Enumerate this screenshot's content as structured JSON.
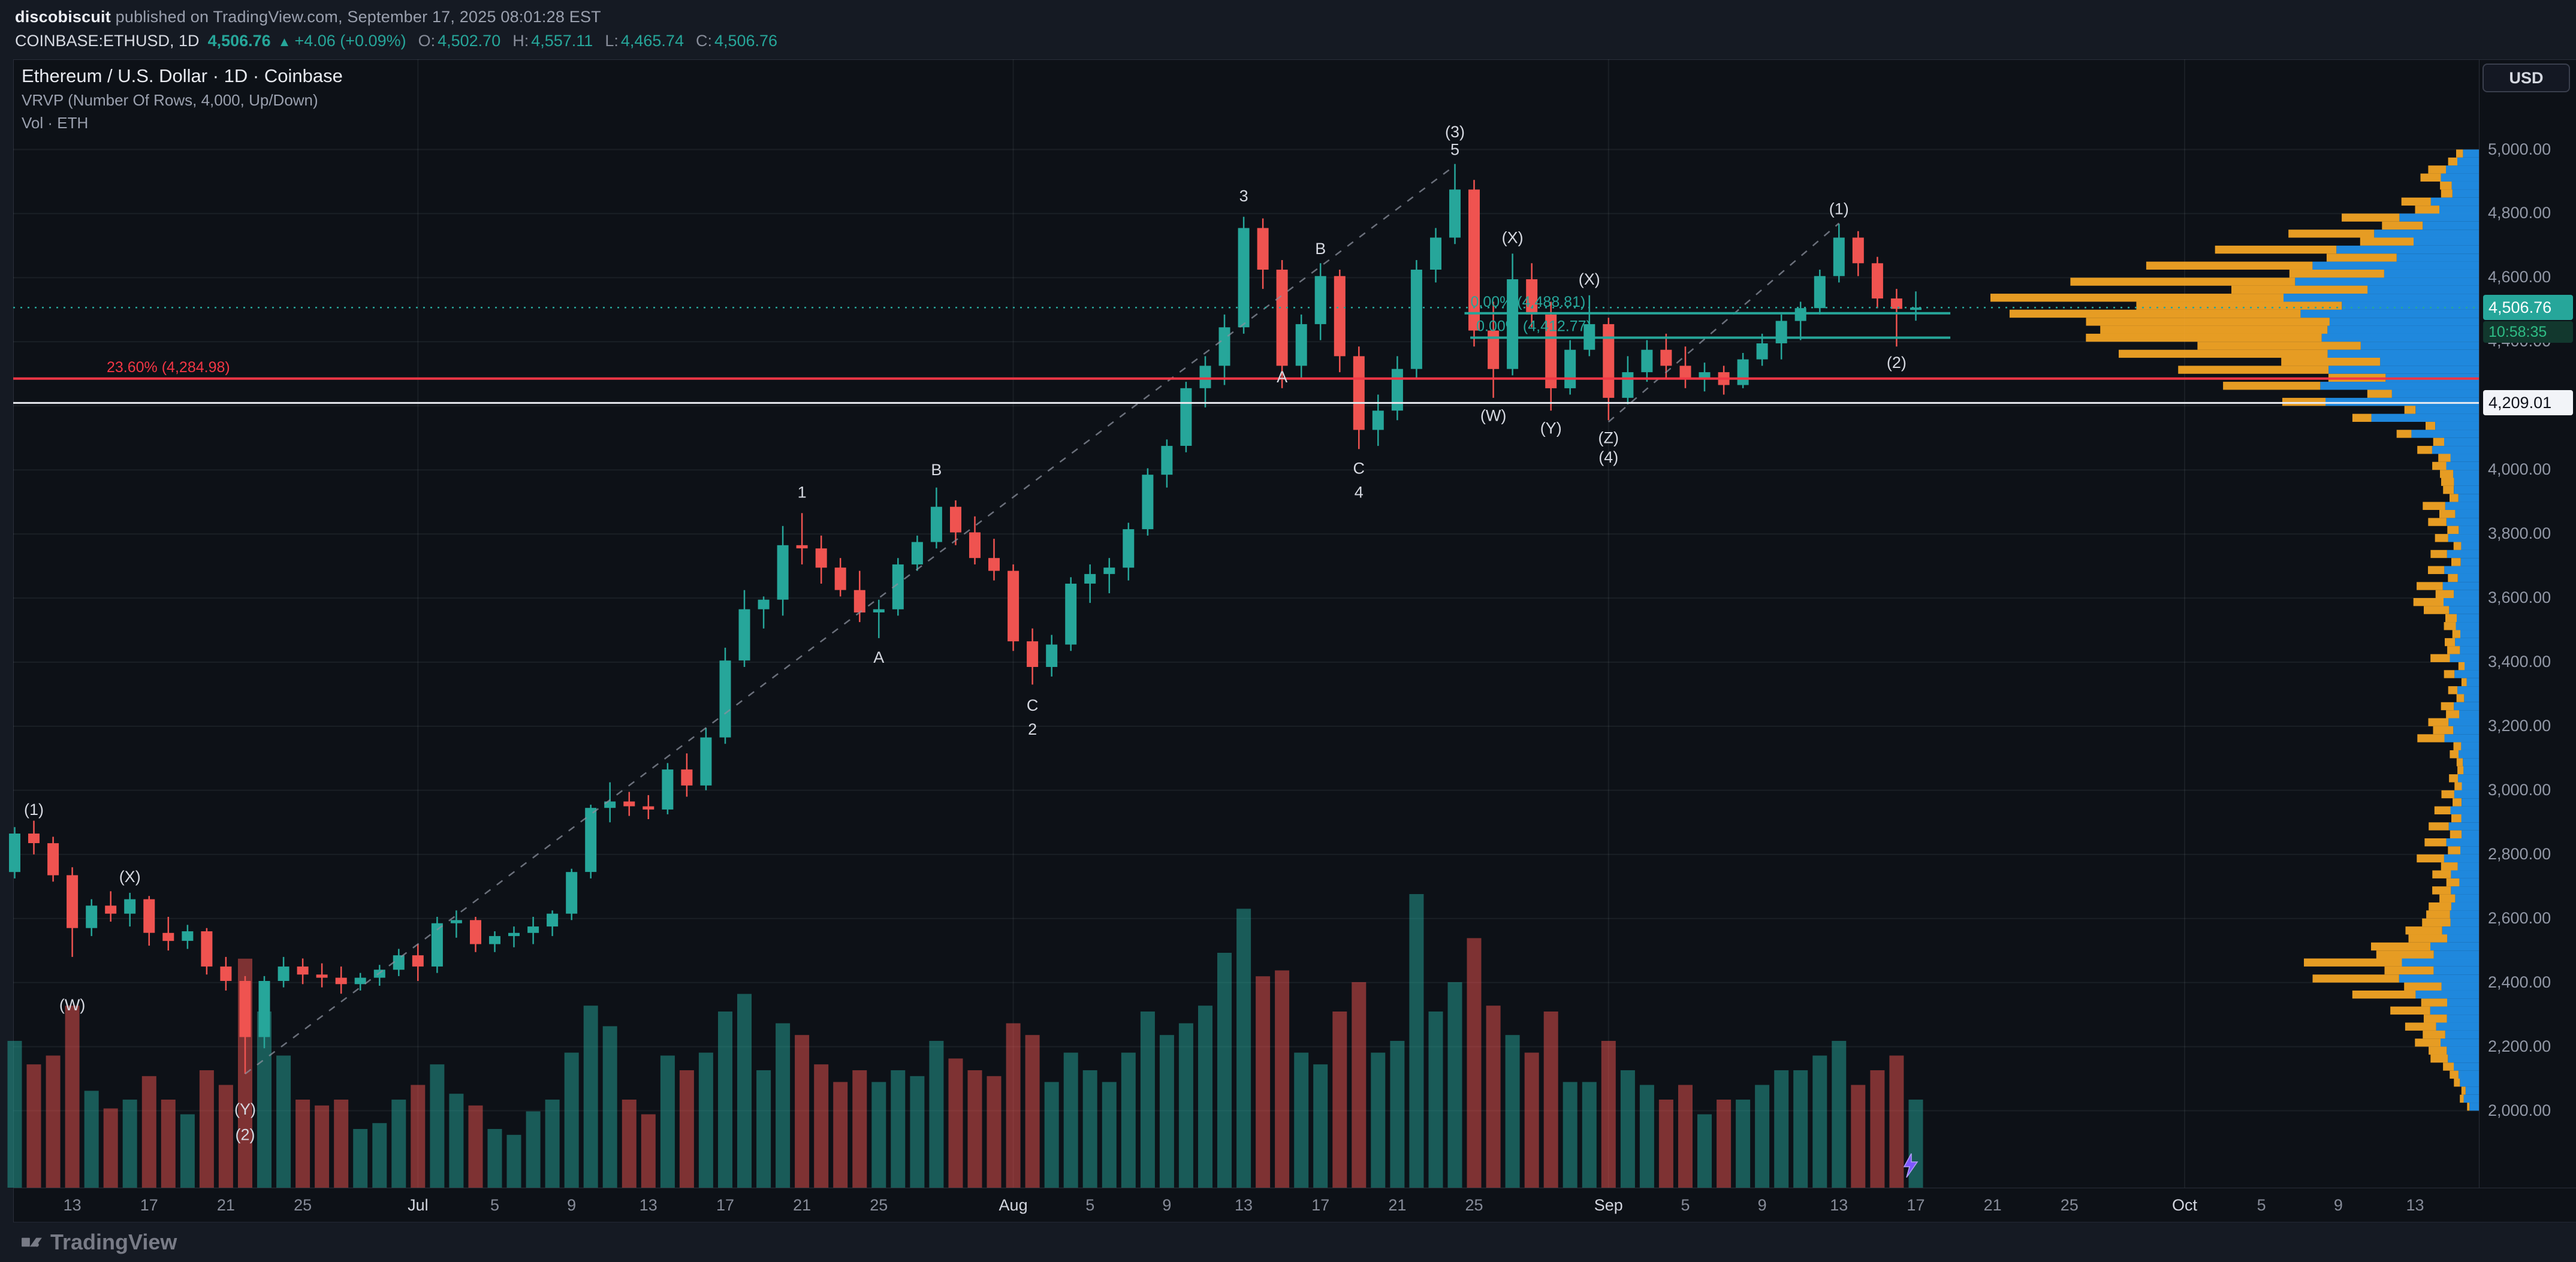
{
  "header": {
    "user": "discobiscuit",
    "published": " published on TradingView.com, September 17, 2025 08:01:28 EST",
    "symbol_line": {
      "symbol": "COINBASE:ETHUSD, 1D",
      "price": "4,506.76",
      "arrow": "▲",
      "change": "+4.06 (+0.09%)",
      "o_label": "O:",
      "o": "4,502.70",
      "h_label": "H:",
      "h": "4,557.11",
      "l_label": "L:",
      "l": "4,465.74",
      "c_label": "C:",
      "c": "4,506.76"
    }
  },
  "legend": {
    "title": "Ethereum / U.S. Dollar · 1D · Coinbase",
    "indicator1": "VRVP (Number Of Rows, 4,000, Up/Down)",
    "indicator2": "Vol · ETH"
  },
  "axis_button": "USD",
  "badges": {
    "last_price": "4,506.76",
    "countdown": "10:58:35",
    "alert_price": "4,209.01"
  },
  "footer": {
    "brand": "TradingView"
  },
  "chart_data": {
    "type": "candlestick",
    "title": "Ethereum / U.S. Dollar · 1D · Coinbase",
    "symbol": "COINBASE:ETHUSD",
    "interval": "1D",
    "visible_price_range": [
      1760,
      5280
    ],
    "badge_prices": {
      "last": 4506.76,
      "alert": 4209.01
    },
    "price_axis": [
      {
        "t": "5,000.00",
        "p": 5000
      },
      {
        "t": "4,800.00",
        "p": 4800
      },
      {
        "t": "4,600.00",
        "p": 4600
      },
      {
        "t": "4,400.00",
        "p": 4400
      },
      {
        "t": "4,200.00",
        "p": 4200
      },
      {
        "t": "4,000.00",
        "p": 4000
      },
      {
        "t": "3,800.00",
        "p": 3800
      },
      {
        "t": "3,600.00",
        "p": 3600
      },
      {
        "t": "3,400.00",
        "p": 3400
      },
      {
        "t": "3,200.00",
        "p": 3200
      },
      {
        "t": "3,000.00",
        "p": 3000
      },
      {
        "t": "2,800.00",
        "p": 2800
      },
      {
        "t": "2,600.00",
        "p": 2600
      },
      {
        "t": "2,400.00",
        "p": 2400
      },
      {
        "t": "2,200.00",
        "p": 2200
      },
      {
        "t": "2,000.00",
        "p": 2000
      }
    ],
    "time_axis": [
      {
        "t": "13",
        "d": 3
      },
      {
        "t": "17",
        "d": 7
      },
      {
        "t": "21",
        "d": 11
      },
      {
        "t": "25",
        "d": 15
      },
      {
        "t": "Jul",
        "d": 21,
        "m": true
      },
      {
        "t": "5",
        "d": 25
      },
      {
        "t": "9",
        "d": 29
      },
      {
        "t": "13",
        "d": 33
      },
      {
        "t": "17",
        "d": 37
      },
      {
        "t": "21",
        "d": 41
      },
      {
        "t": "25",
        "d": 45
      },
      {
        "t": "Aug",
        "d": 52,
        "m": true
      },
      {
        "t": "5",
        "d": 56
      },
      {
        "t": "9",
        "d": 60
      },
      {
        "t": "13",
        "d": 64
      },
      {
        "t": "17",
        "d": 68
      },
      {
        "t": "21",
        "d": 72
      },
      {
        "t": "25",
        "d": 76
      },
      {
        "t": "Sep",
        "d": 83,
        "m": true
      },
      {
        "t": "5",
        "d": 87
      },
      {
        "t": "9",
        "d": 91
      },
      {
        "t": "13",
        "d": 95
      },
      {
        "t": "17",
        "d": 99
      },
      {
        "t": "21",
        "d": 103
      },
      {
        "t": "25",
        "d": 107
      },
      {
        "t": "Oct",
        "d": 113,
        "m": true
      },
      {
        "t": "5",
        "d": 117
      },
      {
        "t": "9",
        "d": 121
      },
      {
        "t": "13",
        "d": 125
      }
    ],
    "month_grid": [
      21,
      52,
      83,
      113
    ],
    "lines": [
      {
        "name": "fib-line-23-60",
        "label": "23.60% (4,284.98)",
        "label_x": 178,
        "price": 4284.98,
        "color": "#f23645",
        "style": "solid",
        "width": 4
      },
      {
        "name": "horizontal-line-4209",
        "label": "",
        "price": 4209.01,
        "color": "#e8eaf0",
        "style": "solid",
        "width": 3
      },
      {
        "name": "last-price-line",
        "label": "",
        "price": 4506.76,
        "color": "#26a69a",
        "style": "dotted",
        "width": 2.5
      },
      {
        "name": "fib-line-0-upper",
        "label": "0.00% (4,488.81)",
        "price": 4488.81,
        "color": "#26a69a",
        "style": "solid",
        "width": 4,
        "from_i": 75.5,
        "to_i": 100.8
      },
      {
        "name": "fib-line-0-lower",
        "label": "0.00% (4,412.77)",
        "price": 4412.77,
        "color": "#26a69a",
        "style": "solid",
        "width": 4,
        "from_i": 75.8,
        "to_i": 100.8
      }
    ],
    "trendlines": [
      {
        "i1": 12,
        "p1": 2115,
        "i2": 75,
        "p2": 4950
      },
      {
        "i1": 83,
        "p1": 4150,
        "i2": 95,
        "p2": 4770
      }
    ],
    "wave_labels": [
      {
        "t": "(1)",
        "i": 1,
        "p": 2940
      },
      {
        "t": "(X)",
        "i": 6,
        "p": 2730
      },
      {
        "t": "(W)",
        "i": 3,
        "p": 2330
      },
      {
        "t": "(Y)",
        "i": 12,
        "p": 2005
      },
      {
        "t": "(2)",
        "i": 12,
        "p": 1925
      },
      {
        "t": "1",
        "i": 41,
        "p": 3930
      },
      {
        "t": "A",
        "i": 45,
        "p": 3415
      },
      {
        "t": "B",
        "i": 48,
        "p": 4000
      },
      {
        "t": "C",
        "i": 53,
        "p": 3265
      },
      {
        "t": "2",
        "i": 53,
        "p": 3190
      },
      {
        "t": "3",
        "i": 64,
        "p": 4855
      },
      {
        "t": "A",
        "i": 66,
        "p": 4290
      },
      {
        "t": "B",
        "i": 68,
        "p": 4690
      },
      {
        "t": "C",
        "i": 70,
        "p": 4005
      },
      {
        "t": "4",
        "i": 70,
        "p": 3930
      },
      {
        "t": "5",
        "i": 75,
        "p": 5000
      },
      {
        "t": "(3)",
        "i": 75,
        "p": 5055
      },
      {
        "t": "(X)",
        "i": 78,
        "p": 4725
      },
      {
        "t": "(W)",
        "i": 77,
        "p": 4170
      },
      {
        "t": "(X)",
        "i": 82,
        "p": 4595
      },
      {
        "t": "(Y)",
        "i": 80,
        "p": 4130
      },
      {
        "t": "(Z)",
        "i": 83,
        "p": 4100
      },
      {
        "t": "(4)",
        "i": 83,
        "p": 4040
      },
      {
        "t": "(1)",
        "i": 95,
        "p": 4815
      },
      {
        "t": "(2)",
        "i": 98,
        "p": 4335
      }
    ],
    "candles": [
      [
        2745,
        2885,
        2725,
        2865,
        0.5
      ],
      [
        2865,
        2905,
        2800,
        2835,
        0.42
      ],
      [
        2835,
        2855,
        2715,
        2735,
        0.45
      ],
      [
        2735,
        2760,
        2480,
        2570,
        0.62
      ],
      [
        2570,
        2660,
        2545,
        2640,
        0.33
      ],
      [
        2640,
        2685,
        2590,
        2615,
        0.27
      ],
      [
        2615,
        2680,
        2575,
        2660,
        0.3
      ],
      [
        2660,
        2670,
        2515,
        2555,
        0.38
      ],
      [
        2555,
        2605,
        2500,
        2530,
        0.3
      ],
      [
        2530,
        2580,
        2505,
        2560,
        0.25
      ],
      [
        2560,
        2570,
        2425,
        2450,
        0.4
      ],
      [
        2450,
        2480,
        2375,
        2405,
        0.35
      ],
      [
        2405,
        2420,
        2115,
        2230,
        0.78
      ],
      [
        2230,
        2420,
        2195,
        2405,
        0.6
      ],
      [
        2405,
        2480,
        2385,
        2450,
        0.45
      ],
      [
        2450,
        2475,
        2395,
        2425,
        0.3
      ],
      [
        2425,
        2460,
        2385,
        2415,
        0.28
      ],
      [
        2415,
        2450,
        2365,
        2395,
        0.3
      ],
      [
        2395,
        2430,
        2375,
        2415,
        0.2
      ],
      [
        2415,
        2455,
        2390,
        2440,
        0.22
      ],
      [
        2440,
        2505,
        2420,
        2485,
        0.3
      ],
      [
        2485,
        2520,
        2405,
        2450,
        0.35
      ],
      [
        2450,
        2605,
        2430,
        2585,
        0.42
      ],
      [
        2585,
        2625,
        2540,
        2595,
        0.32
      ],
      [
        2595,
        2605,
        2495,
        2520,
        0.28
      ],
      [
        2520,
        2560,
        2495,
        2545,
        0.2
      ],
      [
        2545,
        2575,
        2510,
        2555,
        0.18
      ],
      [
        2555,
        2605,
        2520,
        2575,
        0.26
      ],
      [
        2575,
        2625,
        2545,
        2615,
        0.3
      ],
      [
        2615,
        2755,
        2595,
        2745,
        0.46
      ],
      [
        2745,
        2955,
        2725,
        2945,
        0.62
      ],
      [
        2945,
        3025,
        2900,
        2965,
        0.55
      ],
      [
        2965,
        2995,
        2920,
        2950,
        0.3
      ],
      [
        2950,
        2985,
        2910,
        2940,
        0.25
      ],
      [
        2940,
        3085,
        2925,
        3065,
        0.45
      ],
      [
        3065,
        3115,
        2980,
        3015,
        0.4
      ],
      [
        3015,
        3195,
        3000,
        3165,
        0.46
      ],
      [
        3165,
        3445,
        3145,
        3405,
        0.6
      ],
      [
        3405,
        3625,
        3385,
        3565,
        0.66
      ],
      [
        3565,
        3605,
        3505,
        3595,
        0.4
      ],
      [
        3595,
        3825,
        3545,
        3765,
        0.56
      ],
      [
        3765,
        3865,
        3705,
        3755,
        0.52
      ],
      [
        3755,
        3795,
        3645,
        3695,
        0.42
      ],
      [
        3695,
        3725,
        3605,
        3625,
        0.36
      ],
      [
        3625,
        3685,
        3525,
        3555,
        0.4
      ],
      [
        3555,
        3595,
        3475,
        3565,
        0.36
      ],
      [
        3565,
        3725,
        3545,
        3705,
        0.4
      ],
      [
        3705,
        3795,
        3685,
        3775,
        0.38
      ],
      [
        3775,
        3945,
        3755,
        3885,
        0.5
      ],
      [
        3885,
        3905,
        3765,
        3805,
        0.44
      ],
      [
        3805,
        3855,
        3705,
        3725,
        0.4
      ],
      [
        3725,
        3785,
        3655,
        3685,
        0.38
      ],
      [
        3685,
        3705,
        3435,
        3465,
        0.56
      ],
      [
        3465,
        3505,
        3330,
        3385,
        0.52
      ],
      [
        3385,
        3485,
        3355,
        3455,
        0.36
      ],
      [
        3455,
        3665,
        3435,
        3645,
        0.46
      ],
      [
        3645,
        3705,
        3585,
        3675,
        0.4
      ],
      [
        3675,
        3725,
        3615,
        3695,
        0.36
      ],
      [
        3695,
        3835,
        3655,
        3815,
        0.46
      ],
      [
        3815,
        4005,
        3795,
        3985,
        0.6
      ],
      [
        3985,
        4095,
        3945,
        4075,
        0.52
      ],
      [
        4075,
        4275,
        4055,
        4255,
        0.56
      ],
      [
        4255,
        4355,
        4195,
        4325,
        0.62
      ],
      [
        4325,
        4485,
        4265,
        4445,
        0.8
      ],
      [
        4445,
        4790,
        4425,
        4755,
        0.95
      ],
      [
        4755,
        4785,
        4565,
        4625,
        0.72
      ],
      [
        4625,
        4655,
        4255,
        4325,
        0.74
      ],
      [
        4325,
        4485,
        4285,
        4455,
        0.46
      ],
      [
        4455,
        4645,
        4405,
        4605,
        0.42
      ],
      [
        4605,
        4625,
        4305,
        4355,
        0.6
      ],
      [
        4355,
        4385,
        4065,
        4125,
        0.7
      ],
      [
        4125,
        4235,
        4075,
        4185,
        0.46
      ],
      [
        4185,
        4355,
        4155,
        4315,
        0.5
      ],
      [
        4315,
        4655,
        4285,
        4625,
        1.0
      ],
      [
        4625,
        4755,
        4585,
        4725,
        0.6
      ],
      [
        4725,
        4955,
        4705,
        4875,
        0.7
      ],
      [
        4875,
        4905,
        4385,
        4435,
        0.85
      ],
      [
        4435,
        4525,
        4225,
        4315,
        0.62
      ],
      [
        4315,
        4675,
        4295,
        4595,
        0.52
      ],
      [
        4595,
        4645,
        4445,
        4485,
        0.46
      ],
      [
        4485,
        4525,
        4185,
        4255,
        0.6
      ],
      [
        4255,
        4405,
        4235,
        4375,
        0.36
      ],
      [
        4375,
        4545,
        4355,
        4455,
        0.36
      ],
      [
        4455,
        4475,
        4155,
        4225,
        0.5
      ],
      [
        4225,
        4355,
        4205,
        4305,
        0.4
      ],
      [
        4305,
        4405,
        4275,
        4375,
        0.35
      ],
      [
        4375,
        4425,
        4285,
        4325,
        0.3
      ],
      [
        4325,
        4385,
        4255,
        4285,
        0.35
      ],
      [
        4285,
        4335,
        4245,
        4305,
        0.25
      ],
      [
        4305,
        4325,
        4235,
        4265,
        0.3
      ],
      [
        4265,
        4365,
        4255,
        4345,
        0.3
      ],
      [
        4345,
        4425,
        4325,
        4395,
        0.35
      ],
      [
        4395,
        4485,
        4345,
        4465,
        0.4
      ],
      [
        4465,
        4525,
        4405,
        4505,
        0.4
      ],
      [
        4505,
        4625,
        4485,
        4605,
        0.45
      ],
      [
        4605,
        4768,
        4585,
        4725,
        0.5
      ],
      [
        4725,
        4745,
        4605,
        4645,
        0.35
      ],
      [
        4645,
        4665,
        4505,
        4535,
        0.4
      ],
      [
        4535,
        4565,
        4385,
        4502.7,
        0.45
      ],
      [
        4502.7,
        4557.11,
        4465.74,
        4506.76,
        0.3
      ]
    ],
    "volume_profile": {
      "rows_setting": 4000,
      "mode": "Up/Down",
      "up_color": "#2196f3",
      "down_color": "#f9a825",
      "row_size": 50,
      "rows": [
        [
          4975,
          0.05,
          0.3
        ],
        [
          4925,
          0.1,
          0.35
        ],
        [
          4875,
          0.07,
          0.3
        ],
        [
          4825,
          0.13,
          0.38
        ],
        [
          4775,
          0.22,
          0.42
        ],
        [
          4725,
          0.3,
          0.45
        ],
        [
          4675,
          0.42,
          0.46
        ],
        [
          4625,
          0.55,
          0.5
        ],
        [
          4575,
          0.72,
          0.55
        ],
        [
          4525,
          0.95,
          0.6
        ],
        [
          4475,
          1.0,
          0.62
        ],
        [
          4425,
          0.9,
          0.6
        ],
        [
          4375,
          0.74,
          0.58
        ],
        [
          4325,
          0.56,
          0.5
        ],
        [
          4275,
          0.44,
          0.38
        ],
        [
          4225,
          0.32,
          0.22
        ],
        [
          4175,
          0.2,
          0.15
        ],
        [
          4125,
          0.13,
          0.18
        ],
        [
          4075,
          0.1,
          0.24
        ],
        [
          4025,
          0.08,
          0.3
        ],
        [
          3975,
          0.07,
          0.34
        ],
        [
          3925,
          0.06,
          0.3
        ],
        [
          3875,
          0.09,
          0.4
        ],
        [
          3825,
          0.08,
          0.36
        ],
        [
          3775,
          0.07,
          0.3
        ],
        [
          3725,
          0.08,
          0.34
        ],
        [
          3675,
          0.09,
          0.32
        ],
        [
          3625,
          0.12,
          0.42
        ],
        [
          3575,
          0.14,
          0.46
        ],
        [
          3525,
          0.08,
          0.34
        ],
        [
          3475,
          0.07,
          0.3
        ],
        [
          3425,
          0.09,
          0.4
        ],
        [
          3375,
          0.06,
          0.3
        ],
        [
          3325,
          0.05,
          0.3
        ],
        [
          3275,
          0.06,
          0.34
        ],
        [
          3225,
          0.08,
          0.4
        ],
        [
          3175,
          0.1,
          0.44
        ],
        [
          3125,
          0.05,
          0.3
        ],
        [
          3075,
          0.04,
          0.28
        ],
        [
          3025,
          0.05,
          0.3
        ],
        [
          2975,
          0.06,
          0.34
        ],
        [
          2925,
          0.07,
          0.36
        ],
        [
          2875,
          0.08,
          0.4
        ],
        [
          2825,
          0.09,
          0.4
        ],
        [
          2775,
          0.11,
          0.44
        ],
        [
          2725,
          0.09,
          0.4
        ],
        [
          2675,
          0.1,
          0.4
        ],
        [
          2625,
          0.12,
          0.45
        ],
        [
          2575,
          0.15,
          0.5
        ],
        [
          2525,
          0.2,
          0.55
        ],
        [
          2475,
          0.3,
          0.56
        ],
        [
          2425,
          0.27,
          0.52
        ],
        [
          2375,
          0.2,
          0.5
        ],
        [
          2325,
          0.14,
          0.45
        ],
        [
          2275,
          0.12,
          0.42
        ],
        [
          2225,
          0.11,
          0.4
        ],
        [
          2175,
          0.09,
          0.36
        ],
        [
          2125,
          0.06,
          0.3
        ],
        [
          2075,
          0.04,
          0.24
        ],
        [
          2025,
          0.03,
          0.2
        ]
      ]
    }
  }
}
